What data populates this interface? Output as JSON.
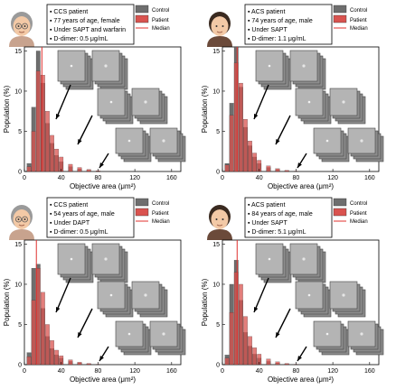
{
  "legend": {
    "control_label": "Control",
    "patient_label": "Patient",
    "median_label": "Median"
  },
  "colors": {
    "control": "#6e6e6e",
    "patient": "#d9534f",
    "median": "#e0302e",
    "image_frame": "#9a9a9a"
  },
  "shared_axes": {
    "xlabel": "Objective area (μm²)",
    "ylabel": "Population (%)",
    "xticks": [
      "0",
      "40",
      "80",
      "120",
      "160"
    ],
    "yticks": [
      "0",
      "5",
      "10",
      "15"
    ],
    "xlim": [
      0,
      170
    ],
    "ylim": [
      0,
      15.5
    ],
    "grid": false
  },
  "panels": [
    {
      "id": "top-left",
      "info": [
        "CCS patient",
        "77 years of age, female",
        "Under SAPT and warfarin",
        "D-dimer: 0.5 μg/mL"
      ],
      "icon": "elderly-woman-icon"
    },
    {
      "id": "top-right",
      "info": [
        "ACS patient",
        "74 years of age, male",
        "Under SAPT",
        "D-dimer: 1.1 μg/mL"
      ],
      "icon": "man-icon"
    },
    {
      "id": "bottom-left",
      "info": [
        "CCS patient",
        "54 years of age, male",
        "Under DAPT",
        "D-dimer: 0.5 μg/mL"
      ],
      "icon": "elderly-man-icon"
    },
    {
      "id": "bottom-right",
      "info": [
        "ACS patient",
        "84 years of age, male",
        "Under SAPT",
        "D-dimer: 5.1 μg/mL"
      ],
      "icon": "man-icon"
    }
  ],
  "chart_data": [
    {
      "type": "bar",
      "panel": "top-left",
      "x": [
        5,
        10,
        15,
        20,
        25,
        30,
        35,
        40,
        50,
        60,
        70,
        80
      ],
      "series": [
        {
          "name": "Control",
          "values": [
            1.0,
            8.0,
            15.0,
            11.0,
            6.0,
            3.5,
            2.0,
            1.2,
            0.6,
            0.3,
            0.15,
            0.05
          ]
        },
        {
          "name": "Patient",
          "values": [
            0.6,
            5.0,
            12.5,
            12.0,
            7.5,
            4.5,
            2.8,
            1.8,
            0.9,
            0.5,
            0.25,
            0.1
          ]
        }
      ],
      "median": {
        "Patient": 19
      },
      "xlim": [
        0,
        170
      ],
      "ylim": [
        0,
        15.5
      ]
    },
    {
      "type": "bar",
      "panel": "top-right",
      "x": [
        5,
        10,
        15,
        20,
        25,
        30,
        35,
        40,
        50,
        60,
        70,
        80
      ],
      "series": [
        {
          "name": "Control",
          "values": [
            1.0,
            8.5,
            15.5,
            10.5,
            5.5,
            3.2,
            1.8,
            1.0,
            0.5,
            0.25,
            0.1,
            0.05
          ]
        },
        {
          "name": "Patient",
          "values": [
            0.8,
            7.0,
            13.5,
            11.0,
            6.5,
            3.8,
            2.3,
            1.4,
            0.7,
            0.35,
            0.15,
            0.05
          ]
        }
      ],
      "median": {
        "Patient": 16
      },
      "xlim": [
        0,
        170
      ],
      "ylim": [
        0,
        15.5
      ]
    },
    {
      "type": "bar",
      "panel": "bottom-left",
      "x": [
        5,
        10,
        15,
        20,
        25,
        30,
        35,
        40,
        50,
        60,
        70,
        80
      ],
      "series": [
        {
          "name": "Control",
          "values": [
            1.5,
            12.0,
            12.5,
            7.0,
            3.5,
            2.0,
            1.2,
            0.8,
            0.4,
            0.2,
            0.1,
            0.05
          ]
        },
        {
          "name": "Patient",
          "values": [
            1.0,
            8.0,
            12.0,
            9.0,
            5.0,
            3.0,
            1.8,
            1.1,
            0.6,
            0.3,
            0.15,
            0.05
          ]
        }
      ],
      "median": {
        "Patient": 13
      },
      "xlim": [
        0,
        170
      ],
      "ylim": [
        0,
        15.5
      ]
    },
    {
      "type": "bar",
      "panel": "bottom-right",
      "x": [
        5,
        10,
        15,
        20,
        25,
        30,
        35,
        40,
        50,
        60,
        70,
        80
      ],
      "series": [
        {
          "name": "Control",
          "values": [
            1.2,
            10.0,
            13.0,
            8.0,
            4.0,
            2.3,
            1.3,
            0.8,
            0.4,
            0.2,
            0.1,
            0.05
          ]
        },
        {
          "name": "Patient",
          "values": [
            0.8,
            6.5,
            11.5,
            10.0,
            6.0,
            3.5,
            2.1,
            1.3,
            0.7,
            0.35,
            0.15,
            0.05
          ]
        }
      ],
      "median": {
        "Patient": 16
      },
      "xlim": [
        0,
        170
      ],
      "ylim": [
        0,
        15.5
      ]
    }
  ]
}
